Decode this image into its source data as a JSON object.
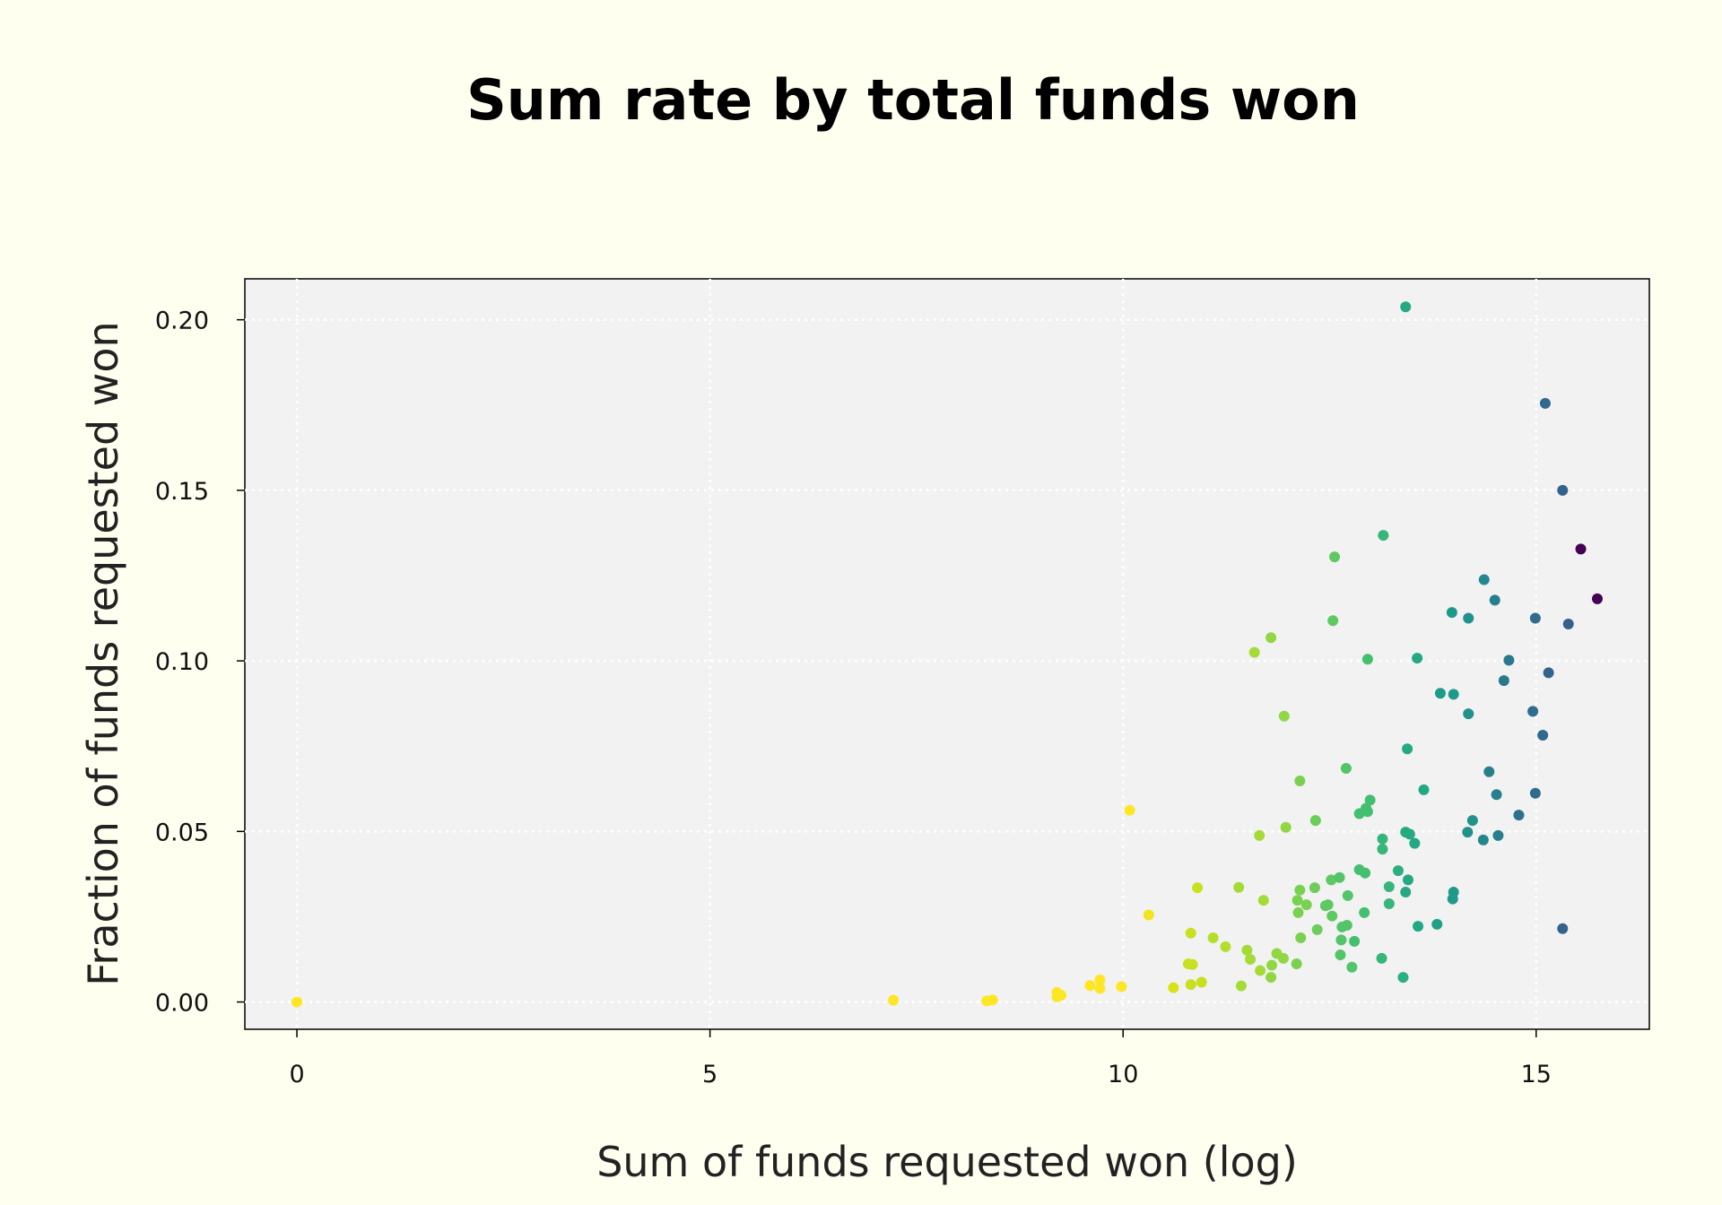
{
  "chart_data": {
    "type": "scatter",
    "title": "Sum rate by total funds won",
    "xlabel": "Sum of funds requested won (log)",
    "ylabel": "Fraction of funds requested won",
    "xlim": [
      -0.63,
      16.37
    ],
    "ylim": [
      -0.008,
      0.212
    ],
    "xticks": [
      0,
      5,
      10,
      15
    ],
    "xtick_labels": [
      "0",
      "5",
      "10",
      "15"
    ],
    "yticks": [
      0.0,
      0.05,
      0.1,
      0.15,
      0.2
    ],
    "ytick_labels": [
      "0.00",
      "0.05",
      "0.10",
      "0.15",
      "0.20"
    ],
    "grid": true,
    "legend": "none",
    "background": "#fffff0",
    "plot_background": "#f2f2f2",
    "grid_color": "#ffffff",
    "colormap": "viridis (reversed) by x value",
    "points": [
      {
        "x": 0.0,
        "y": 0.0,
        "color": "#fde725"
      },
      {
        "x": 7.22,
        "y": 0.0005,
        "color": "#fde725"
      },
      {
        "x": 8.35,
        "y": 0.0003,
        "color": "#fde725"
      },
      {
        "x": 8.42,
        "y": 0.0006,
        "color": "#fde725"
      },
      {
        "x": 9.2,
        "y": 0.0015,
        "color": "#fde725"
      },
      {
        "x": 9.2,
        "y": 0.0028,
        "color": "#fde725"
      },
      {
        "x": 9.25,
        "y": 0.002,
        "color": "#fde725"
      },
      {
        "x": 9.6,
        "y": 0.0048,
        "color": "#fde725"
      },
      {
        "x": 9.72,
        "y": 0.0065,
        "color": "#fde725"
      },
      {
        "x": 9.72,
        "y": 0.004,
        "color": "#fde725"
      },
      {
        "x": 9.98,
        "y": 0.0045,
        "color": "#fde725"
      },
      {
        "x": 10.08,
        "y": 0.0562,
        "color": "#fde725"
      },
      {
        "x": 10.31,
        "y": 0.0255,
        "color": "#f2e51d"
      },
      {
        "x": 10.61,
        "y": 0.0042,
        "color": "#d8e219"
      },
      {
        "x": 10.79,
        "y": 0.0112,
        "color": "#c8e020"
      },
      {
        "x": 10.82,
        "y": 0.0202,
        "color": "#c8e020"
      },
      {
        "x": 10.82,
        "y": 0.0051,
        "color": "#c8e020"
      },
      {
        "x": 10.84,
        "y": 0.011,
        "color": "#c8e020"
      },
      {
        "x": 10.9,
        "y": 0.0335,
        "color": "#c8e020"
      },
      {
        "x": 10.95,
        "y": 0.0058,
        "color": "#c8e020"
      },
      {
        "x": 11.09,
        "y": 0.0188,
        "color": "#b5de2b"
      },
      {
        "x": 11.24,
        "y": 0.0162,
        "color": "#b5de2b"
      },
      {
        "x": 11.4,
        "y": 0.0336,
        "color": "#a5db36"
      },
      {
        "x": 11.43,
        "y": 0.0047,
        "color": "#a5db36"
      },
      {
        "x": 11.5,
        "y": 0.0152,
        "color": "#a5db36"
      },
      {
        "x": 11.54,
        "y": 0.0125,
        "color": "#a5db36"
      },
      {
        "x": 11.59,
        "y": 0.1025,
        "color": "#a5db36"
      },
      {
        "x": 11.65,
        "y": 0.0488,
        "color": "#a5db36"
      },
      {
        "x": 11.66,
        "y": 0.0092,
        "color": "#a5db36"
      },
      {
        "x": 11.7,
        "y": 0.0298,
        "color": "#a5db36"
      },
      {
        "x": 11.79,
        "y": 0.1068,
        "color": "#90d743"
      },
      {
        "x": 11.79,
        "y": 0.0072,
        "color": "#90d743"
      },
      {
        "x": 11.8,
        "y": 0.0108,
        "color": "#90d743"
      },
      {
        "x": 11.86,
        "y": 0.0142,
        "color": "#90d743"
      },
      {
        "x": 11.94,
        "y": 0.0128,
        "color": "#90d743"
      },
      {
        "x": 11.95,
        "y": 0.0838,
        "color": "#90d743"
      },
      {
        "x": 11.97,
        "y": 0.0512,
        "color": "#90d743"
      },
      {
        "x": 12.1,
        "y": 0.0112,
        "color": "#7ad151"
      },
      {
        "x": 12.11,
        "y": 0.0298,
        "color": "#7ad151"
      },
      {
        "x": 12.12,
        "y": 0.0262,
        "color": "#7ad151"
      },
      {
        "x": 12.14,
        "y": 0.0328,
        "color": "#7ad151"
      },
      {
        "x": 12.14,
        "y": 0.0648,
        "color": "#7ad151"
      },
      {
        "x": 12.15,
        "y": 0.0188,
        "color": "#7ad151"
      },
      {
        "x": 12.22,
        "y": 0.0285,
        "color": "#7ad151"
      },
      {
        "x": 12.32,
        "y": 0.0335,
        "color": "#6ccd5a"
      },
      {
        "x": 12.33,
        "y": 0.0532,
        "color": "#6ccd5a"
      },
      {
        "x": 12.35,
        "y": 0.0212,
        "color": "#6ccd5a"
      },
      {
        "x": 12.45,
        "y": 0.0282,
        "color": "#5ec962"
      },
      {
        "x": 12.48,
        "y": 0.0285,
        "color": "#5ec962"
      },
      {
        "x": 12.52,
        "y": 0.0358,
        "color": "#5ec962"
      },
      {
        "x": 12.53,
        "y": 0.0252,
        "color": "#5ec962"
      },
      {
        "x": 12.54,
        "y": 0.1118,
        "color": "#5ec962"
      },
      {
        "x": 12.56,
        "y": 0.1305,
        "color": "#5ec962"
      },
      {
        "x": 12.62,
        "y": 0.0365,
        "color": "#52c569"
      },
      {
        "x": 12.63,
        "y": 0.0138,
        "color": "#52c569"
      },
      {
        "x": 12.64,
        "y": 0.0182,
        "color": "#52c569"
      },
      {
        "x": 12.65,
        "y": 0.022,
        "color": "#52c569"
      },
      {
        "x": 12.7,
        "y": 0.0685,
        "color": "#52c569"
      },
      {
        "x": 12.71,
        "y": 0.0225,
        "color": "#52c569"
      },
      {
        "x": 12.72,
        "y": 0.0312,
        "color": "#52c569"
      },
      {
        "x": 12.77,
        "y": 0.0102,
        "color": "#52c569"
      },
      {
        "x": 12.8,
        "y": 0.0178,
        "color": "#44bf70"
      },
      {
        "x": 12.86,
        "y": 0.0388,
        "color": "#44bf70"
      },
      {
        "x": 12.86,
        "y": 0.0552,
        "color": "#44bf70"
      },
      {
        "x": 12.92,
        "y": 0.0262,
        "color": "#44bf70"
      },
      {
        "x": 12.93,
        "y": 0.0378,
        "color": "#44bf70"
      },
      {
        "x": 12.94,
        "y": 0.0568,
        "color": "#44bf70"
      },
      {
        "x": 12.96,
        "y": 0.1005,
        "color": "#44bf70"
      },
      {
        "x": 12.96,
        "y": 0.0558,
        "color": "#44bf70"
      },
      {
        "x": 12.99,
        "y": 0.0592,
        "color": "#44bf70"
      },
      {
        "x": 13.13,
        "y": 0.0128,
        "color": "#35b779"
      },
      {
        "x": 13.14,
        "y": 0.0478,
        "color": "#35b779"
      },
      {
        "x": 13.14,
        "y": 0.0448,
        "color": "#35b779"
      },
      {
        "x": 13.15,
        "y": 0.1368,
        "color": "#35b779"
      },
      {
        "x": 13.22,
        "y": 0.0288,
        "color": "#35b779"
      },
      {
        "x": 13.22,
        "y": 0.0338,
        "color": "#35b779"
      },
      {
        "x": 13.33,
        "y": 0.0385,
        "color": "#2ab07f"
      },
      {
        "x": 13.39,
        "y": 0.0072,
        "color": "#2ab07f"
      },
      {
        "x": 13.42,
        "y": 0.2038,
        "color": "#26a982"
      },
      {
        "x": 13.42,
        "y": 0.0322,
        "color": "#26a982"
      },
      {
        "x": 13.42,
        "y": 0.0498,
        "color": "#26a982"
      },
      {
        "x": 13.44,
        "y": 0.0742,
        "color": "#26a982"
      },
      {
        "x": 13.45,
        "y": 0.0358,
        "color": "#26a982"
      },
      {
        "x": 13.47,
        "y": 0.0492,
        "color": "#26a982"
      },
      {
        "x": 13.53,
        "y": 0.0465,
        "color": "#22a884"
      },
      {
        "x": 13.56,
        "y": 0.1008,
        "color": "#22a884"
      },
      {
        "x": 13.57,
        "y": 0.0222,
        "color": "#22a884"
      },
      {
        "x": 13.64,
        "y": 0.0622,
        "color": "#22a884"
      },
      {
        "x": 13.8,
        "y": 0.0228,
        "color": "#1fa187"
      },
      {
        "x": 13.84,
        "y": 0.0905,
        "color": "#1f9a8a"
      },
      {
        "x": 13.98,
        "y": 0.1142,
        "color": "#1f9a8a"
      },
      {
        "x": 13.99,
        "y": 0.0302,
        "color": "#1f9a8a"
      },
      {
        "x": 14.0,
        "y": 0.0322,
        "color": "#1f9a8a"
      },
      {
        "x": 14.0,
        "y": 0.0902,
        "color": "#1f9a8a"
      },
      {
        "x": 14.17,
        "y": 0.0498,
        "color": "#21918c"
      },
      {
        "x": 14.18,
        "y": 0.1125,
        "color": "#21918c"
      },
      {
        "x": 14.18,
        "y": 0.0845,
        "color": "#21918c"
      },
      {
        "x": 14.23,
        "y": 0.0532,
        "color": "#21918c"
      },
      {
        "x": 14.36,
        "y": 0.0475,
        "color": "#24868e"
      },
      {
        "x": 14.37,
        "y": 0.1238,
        "color": "#24868e"
      },
      {
        "x": 14.43,
        "y": 0.0675,
        "color": "#277f8e"
      },
      {
        "x": 14.5,
        "y": 0.1178,
        "color": "#277f8e"
      },
      {
        "x": 14.52,
        "y": 0.0608,
        "color": "#277f8e"
      },
      {
        "x": 14.54,
        "y": 0.0488,
        "color": "#277f8e"
      },
      {
        "x": 14.61,
        "y": 0.0942,
        "color": "#2a788e"
      },
      {
        "x": 14.67,
        "y": 0.1002,
        "color": "#2a788e"
      },
      {
        "x": 14.79,
        "y": 0.0548,
        "color": "#2c728e"
      },
      {
        "x": 14.96,
        "y": 0.0852,
        "color": "#2f6c8e"
      },
      {
        "x": 14.99,
        "y": 0.1125,
        "color": "#2f6c8e"
      },
      {
        "x": 14.99,
        "y": 0.0612,
        "color": "#2f6c8e"
      },
      {
        "x": 15.08,
        "y": 0.0782,
        "color": "#31688e"
      },
      {
        "x": 15.11,
        "y": 0.1755,
        "color": "#31688e"
      },
      {
        "x": 15.15,
        "y": 0.0965,
        "color": "#33638d"
      },
      {
        "x": 15.32,
        "y": 0.15,
        "color": "#33638d"
      },
      {
        "x": 15.32,
        "y": 0.0215,
        "color": "#33638d"
      },
      {
        "x": 15.39,
        "y": 0.1108,
        "color": "#355f8d"
      },
      {
        "x": 15.54,
        "y": 0.1328,
        "color": "#440154"
      },
      {
        "x": 15.74,
        "y": 0.1182,
        "color": "#440154"
      }
    ]
  }
}
